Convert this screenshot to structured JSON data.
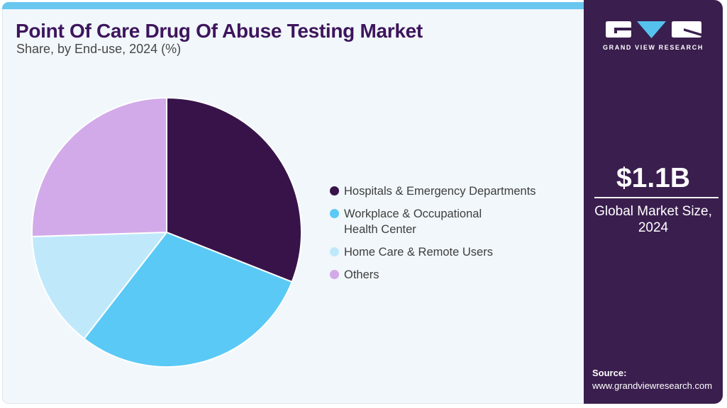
{
  "header": {
    "title": "Point Of Care Drug Of Abuse Testing Market",
    "subtitle": "Share, by End-use, 2024 (%)"
  },
  "chart_data": {
    "type": "pie",
    "title": "Point Of Care Drug Of Abuse Testing Market Share, by End-use, 2024 (%)",
    "unit": "%",
    "start_angle": "top",
    "direction": "clockwise",
    "legend_position": "right",
    "slices": [
      {
        "label": "Hospitals & Emergency Departments",
        "value": 31.0,
        "color": "#38134A"
      },
      {
        "label": "Workplace & Occupational Health Center",
        "value": 29.5,
        "color": "#5BC9F5"
      },
      {
        "label": "Home Care & Remote Users",
        "value": 14.0,
        "color": "#BFE9FA"
      },
      {
        "label": "Others",
        "value": 25.5,
        "color": "#D2AAE9"
      }
    ]
  },
  "legend": {
    "items": [
      {
        "label": "Hospitals & Emergency Departments",
        "color": "#38134A"
      },
      {
        "label": "Workplace & Occupational\nHealth Center",
        "color": "#5BC9F5"
      },
      {
        "label": "Home Care & Remote Users",
        "color": "#BFE9FA"
      },
      {
        "label": "Others",
        "color": "#D2AAE9"
      }
    ]
  },
  "sidebar": {
    "logo_text": "GRAND VIEW RESEARCH",
    "market_size": "$1.1B",
    "market_size_caption": "Global Market Size,\n2024",
    "source_label": "Source:",
    "source_url": "www.grandviewresearch.com"
  },
  "colors": {
    "accent_bar": "#69C6EF",
    "card_background": "#F1F7FB",
    "sidebar_background": "#3A1E4E",
    "title_text": "#3E155C",
    "logo_triangle": "#54C2EC"
  }
}
